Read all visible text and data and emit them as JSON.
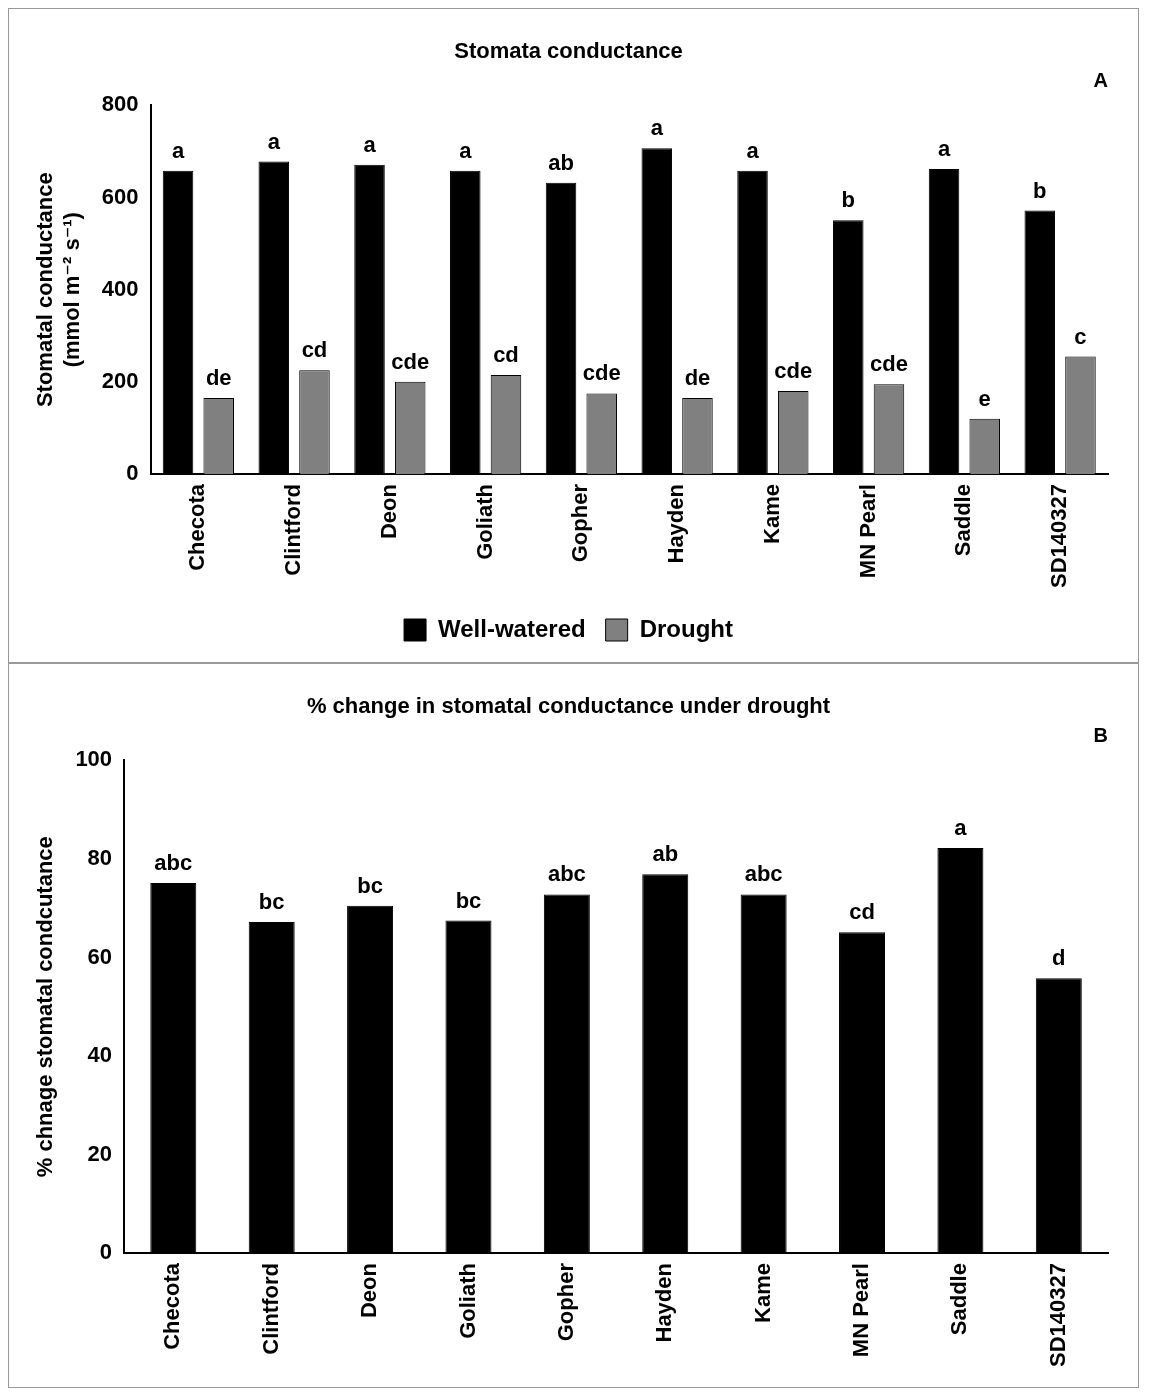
{
  "chart_data": [
    {
      "type": "bar",
      "title": "Stomata conductance",
      "ylabel": "Stomatal conductance (mmol m⁻² s⁻¹)",
      "annotations": [
        "A"
      ],
      "categories": [
        "Checota",
        "Clintford",
        "Deon",
        "Goliath",
        "Gopher",
        "Hayden",
        "Kame",
        "MN Pearl",
        "Saddle",
        "SD140327"
      ],
      "series": [
        {
          "name": "Well-watered",
          "color": "#000000",
          "values": [
            658,
            678,
            671,
            658,
            632,
            707,
            658,
            551,
            662,
            572
          ],
          "value_labels": [
            "a",
            "a",
            "a",
            "a",
            "ab",
            "a",
            "a",
            "b",
            "a",
            "b"
          ]
        },
        {
          "name": "Drought",
          "color": "#808080",
          "values": [
            165,
            225,
            200,
            215,
            175,
            165,
            180,
            195,
            120,
            255
          ],
          "value_labels": [
            "de",
            "cd",
            "cde",
            "cd",
            "cde",
            "de",
            "cde",
            "cde",
            "e",
            "c"
          ]
        }
      ],
      "ylim": [
        0,
        800
      ],
      "yticks": [
        0,
        200,
        400,
        600,
        800
      ],
      "grid": false,
      "legend": "bottom"
    },
    {
      "type": "bar",
      "title": "% change in stomatal conductance under drought",
      "ylabel": "% chnage stomatal condcutance",
      "annotations": [
        "B"
      ],
      "categories": [
        "Checota",
        "Clintford",
        "Deon",
        "Goliath",
        "Gopher",
        "Hayden",
        "Kame",
        "MN Pearl",
        "Saddle",
        "SD140327"
      ],
      "series": [
        {
          "color": "#000000",
          "values": [
            75.1,
            67.2,
            70.5,
            67.5,
            72.8,
            76.9,
            72.8,
            65.1,
            82.2,
            55.8
          ],
          "value_labels": [
            "abc",
            "bc",
            "bc",
            "bc",
            "abc",
            "ab",
            "abc",
            "cd",
            "a",
            "d"
          ]
        }
      ],
      "ylim": [
        0,
        100
      ],
      "yticks": [
        0,
        20,
        40,
        60,
        80,
        100
      ],
      "grid": false,
      "legend": false
    }
  ]
}
